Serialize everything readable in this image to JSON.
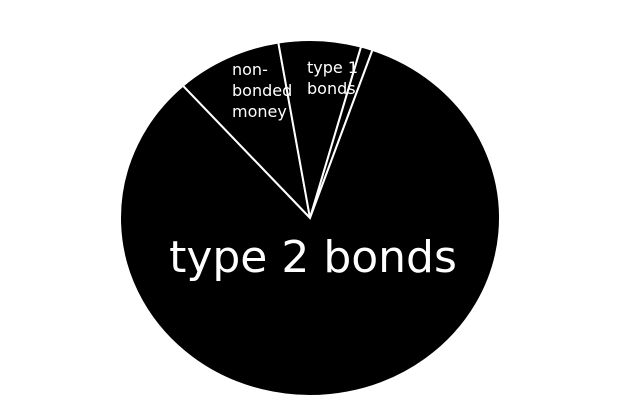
{
  "chart_data": {
    "type": "pie",
    "title": "",
    "legend": "none",
    "slices": [
      {
        "label": "non-bonded money",
        "value": 9
      },
      {
        "label": "type 1 bonds",
        "value": 7
      },
      {
        "label": "",
        "value": 1
      },
      {
        "label": "type 2 bonds",
        "value": 83
      }
    ],
    "colors": {
      "slice_fill": "#000000",
      "slice_stroke": "#ffffff",
      "label_text": "#ffffff",
      "background": "#ffffff"
    }
  }
}
